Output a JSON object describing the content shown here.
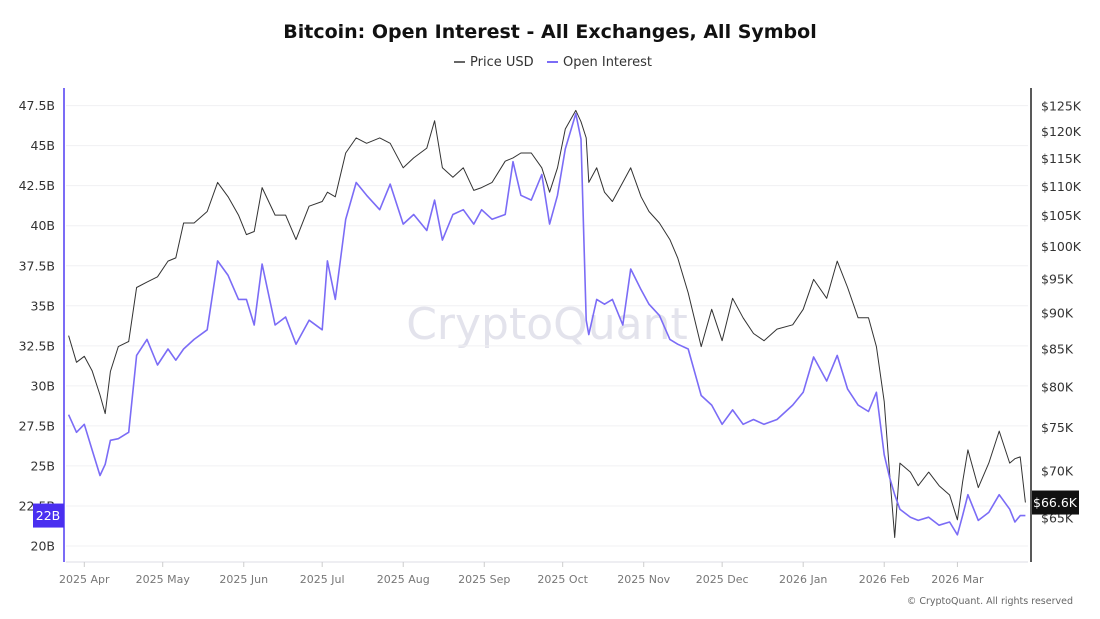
{
  "chart_data": {
    "type": "line",
    "title": "Bitcoin: Open Interest - All Exchanges, All Symbol",
    "legend": {
      "placement": "top-center",
      "entries": [
        "Price USD",
        "Open Interest"
      ]
    },
    "watermark": "CryptoQuant",
    "footer": "© CryptoQuant. All rights reserved",
    "xlim": [
      "2025-03-25",
      "2026-03-28"
    ],
    "x_ticks": [
      {
        "date": "2025-04-01",
        "label": "2025 Apr"
      },
      {
        "date": "2025-05-01",
        "label": "2025 May"
      },
      {
        "date": "2025-06-01",
        "label": "2025 Jun"
      },
      {
        "date": "2025-07-01",
        "label": "2025 Jul"
      },
      {
        "date": "2025-08-01",
        "label": "2025 Aug"
      },
      {
        "date": "2025-09-01",
        "label": "2025 Sep"
      },
      {
        "date": "2025-10-01",
        "label": "2025 Oct"
      },
      {
        "date": "2025-11-01",
        "label": "2025 Nov"
      },
      {
        "date": "2025-12-01",
        "label": "2025 Dec"
      },
      {
        "date": "2026-01-01",
        "label": "2026 Jan"
      },
      {
        "date": "2026-02-01",
        "label": "2026 Feb"
      },
      {
        "date": "2026-03-01",
        "label": "2026 Mar"
      }
    ],
    "y_left": {
      "scale": "linear",
      "ylim": [
        19.0,
        48.6
      ],
      "ticks": [
        {
          "v": 20,
          "label": "20B"
        },
        {
          "v": 22.5,
          "label": "22.5B"
        },
        {
          "v": 25,
          "label": "25B"
        },
        {
          "v": 27.5,
          "label": "27.5B"
        },
        {
          "v": 30,
          "label": "30B"
        },
        {
          "v": 32.5,
          "label": "32.5B"
        },
        {
          "v": 35,
          "label": "35B"
        },
        {
          "v": 37.5,
          "label": "37.5B"
        },
        {
          "v": 40,
          "label": "40B"
        },
        {
          "v": 42.5,
          "label": "42.5B"
        },
        {
          "v": 45,
          "label": "45B"
        },
        {
          "v": 47.5,
          "label": "47.5B"
        }
      ],
      "current": {
        "v": 21.9,
        "label": "22B"
      }
    },
    "y_right": {
      "scale": "log",
      "ylim": [
        60.6,
        128.6
      ],
      "unit": "K USD",
      "ticks": [
        {
          "v": 65,
          "label": "$65K"
        },
        {
          "v": 70,
          "label": "$70K"
        },
        {
          "v": 75,
          "label": "$75K"
        },
        {
          "v": 80,
          "label": "$80K"
        },
        {
          "v": 85,
          "label": "$85K"
        },
        {
          "v": 90,
          "label": "$90K"
        },
        {
          "v": 95,
          "label": "$95K"
        },
        {
          "v": 100,
          "label": "$100K"
        },
        {
          "v": 105,
          "label": "$105K"
        },
        {
          "v": 110,
          "label": "$110K"
        },
        {
          "v": 115,
          "label": "$115K"
        },
        {
          "v": 120,
          "label": "$120K"
        },
        {
          "v": 125,
          "label": "$125K"
        }
      ],
      "current": {
        "v": 66.6,
        "label": "$66.6K"
      }
    },
    "grid": true,
    "series": [
      {
        "name": "Price USD",
        "axis": "right",
        "color": "#333333",
        "points": [
          [
            "2025-03-26",
            86.8
          ],
          [
            "2025-03-29",
            83.2
          ],
          [
            "2025-04-01",
            84.0
          ],
          [
            "2025-04-04",
            82.1
          ],
          [
            "2025-04-07",
            79.0
          ],
          [
            "2025-04-09",
            76.7
          ],
          [
            "2025-04-11",
            82.0
          ],
          [
            "2025-04-14",
            85.3
          ],
          [
            "2025-04-18",
            86.0
          ],
          [
            "2025-04-21",
            93.7
          ],
          [
            "2025-04-25",
            94.5
          ],
          [
            "2025-04-29",
            95.3
          ],
          [
            "2025-05-03",
            97.7
          ],
          [
            "2025-05-06",
            98.2
          ],
          [
            "2025-05-09",
            103.8
          ],
          [
            "2025-05-13",
            103.8
          ],
          [
            "2025-05-18",
            105.7
          ],
          [
            "2025-05-22",
            110.7
          ],
          [
            "2025-05-26",
            108.2
          ],
          [
            "2025-05-30",
            105.1
          ],
          [
            "2025-06-02",
            101.9
          ],
          [
            "2025-06-05",
            102.4
          ],
          [
            "2025-06-08",
            109.8
          ],
          [
            "2025-06-13",
            105.1
          ],
          [
            "2025-06-17",
            105.1
          ],
          [
            "2025-06-21",
            101.1
          ],
          [
            "2025-06-26",
            106.6
          ],
          [
            "2025-07-01",
            107.4
          ],
          [
            "2025-07-03",
            109.0
          ],
          [
            "2025-07-06",
            108.2
          ],
          [
            "2025-07-10",
            116.0
          ],
          [
            "2025-07-14",
            118.8
          ],
          [
            "2025-07-18",
            117.8
          ],
          [
            "2025-07-23",
            118.8
          ],
          [
            "2025-07-27",
            117.8
          ],
          [
            "2025-08-01",
            113.3
          ],
          [
            "2025-08-05",
            115.1
          ],
          [
            "2025-08-10",
            116.9
          ],
          [
            "2025-08-13",
            122.1
          ],
          [
            "2025-08-16",
            113.3
          ],
          [
            "2025-08-20",
            111.6
          ],
          [
            "2025-08-24",
            113.3
          ],
          [
            "2025-08-28",
            109.3
          ],
          [
            "2025-08-31",
            109.8
          ],
          [
            "2025-09-04",
            110.7
          ],
          [
            "2025-09-09",
            114.5
          ],
          [
            "2025-09-12",
            115.1
          ],
          [
            "2025-09-15",
            116.0
          ],
          [
            "2025-09-19",
            116.0
          ],
          [
            "2025-09-23",
            113.3
          ],
          [
            "2025-09-26",
            109.0
          ],
          [
            "2025-09-29",
            113.3
          ],
          [
            "2025-10-02",
            120.5
          ],
          [
            "2025-10-06",
            124.1
          ],
          [
            "2025-10-08",
            121.9
          ],
          [
            "2025-10-10",
            118.8
          ],
          [
            "2025-10-11",
            110.7
          ],
          [
            "2025-10-14",
            113.3
          ],
          [
            "2025-10-17",
            109.0
          ],
          [
            "2025-10-20",
            107.4
          ],
          [
            "2025-10-24",
            110.7
          ],
          [
            "2025-10-27",
            113.3
          ],
          [
            "2025-10-31",
            108.2
          ],
          [
            "2025-11-03",
            105.7
          ],
          [
            "2025-11-07",
            103.8
          ],
          [
            "2025-11-11",
            101.1
          ],
          [
            "2025-11-14",
            98.2
          ],
          [
            "2025-11-18",
            92.9
          ],
          [
            "2025-11-23",
            85.3
          ],
          [
            "2025-11-27",
            90.5
          ],
          [
            "2025-12-01",
            86.1
          ],
          [
            "2025-12-05",
            92.1
          ],
          [
            "2025-12-09",
            89.3
          ],
          [
            "2025-12-13",
            87.1
          ],
          [
            "2025-12-17",
            86.1
          ],
          [
            "2025-12-22",
            87.7
          ],
          [
            "2025-12-28",
            88.3
          ],
          [
            "2026-01-01",
            90.5
          ],
          [
            "2026-01-05",
            94.9
          ],
          [
            "2026-01-10",
            92.1
          ],
          [
            "2026-01-14",
            97.7
          ],
          [
            "2026-01-18",
            93.7
          ],
          [
            "2026-01-22",
            89.3
          ],
          [
            "2026-01-26",
            89.3
          ],
          [
            "2026-01-29",
            85.3
          ],
          [
            "2026-02-01",
            78.2
          ],
          [
            "2026-02-03",
            69.9
          ],
          [
            "2026-02-05",
            63.0
          ],
          [
            "2026-02-07",
            70.9
          ],
          [
            "2026-02-11",
            69.9
          ],
          [
            "2026-02-14",
            68.4
          ],
          [
            "2026-02-18",
            69.9
          ],
          [
            "2026-02-22",
            68.4
          ],
          [
            "2026-02-26",
            67.4
          ],
          [
            "2026-03-01",
            64.8
          ],
          [
            "2026-03-03",
            68.8
          ],
          [
            "2026-03-05",
            72.4
          ],
          [
            "2026-03-09",
            68.2
          ],
          [
            "2026-03-13",
            70.9
          ],
          [
            "2026-03-17",
            74.6
          ],
          [
            "2026-03-21",
            70.9
          ],
          [
            "2026-03-23",
            71.4
          ],
          [
            "2026-03-25",
            71.6
          ],
          [
            "2026-03-27",
            66.6
          ]
        ]
      },
      {
        "name": "Open Interest",
        "axis": "left",
        "color": "#7b6cf6",
        "points": [
          [
            "2025-03-26",
            28.2
          ],
          [
            "2025-03-29",
            27.1
          ],
          [
            "2025-04-01",
            27.6
          ],
          [
            "2025-04-04",
            26.0
          ],
          [
            "2025-04-07",
            24.4
          ],
          [
            "2025-04-09",
            25.1
          ],
          [
            "2025-04-11",
            26.6
          ],
          [
            "2025-04-14",
            26.7
          ],
          [
            "2025-04-18",
            27.1
          ],
          [
            "2025-04-21",
            31.9
          ],
          [
            "2025-04-25",
            32.9
          ],
          [
            "2025-04-29",
            31.3
          ],
          [
            "2025-05-03",
            32.3
          ],
          [
            "2025-05-06",
            31.6
          ],
          [
            "2025-05-09",
            32.3
          ],
          [
            "2025-05-13",
            32.9
          ],
          [
            "2025-05-18",
            33.5
          ],
          [
            "2025-05-22",
            37.8
          ],
          [
            "2025-05-26",
            36.9
          ],
          [
            "2025-05-30",
            35.4
          ],
          [
            "2025-06-02",
            35.4
          ],
          [
            "2025-06-05",
            33.8
          ],
          [
            "2025-06-08",
            37.6
          ],
          [
            "2025-06-13",
            33.8
          ],
          [
            "2025-06-17",
            34.3
          ],
          [
            "2025-06-21",
            32.6
          ],
          [
            "2025-06-26",
            34.1
          ],
          [
            "2025-07-01",
            33.5
          ],
          [
            "2025-07-03",
            37.8
          ],
          [
            "2025-07-06",
            35.4
          ],
          [
            "2025-07-10",
            40.4
          ],
          [
            "2025-07-14",
            42.7
          ],
          [
            "2025-07-18",
            41.9
          ],
          [
            "2025-07-23",
            41.0
          ],
          [
            "2025-07-27",
            42.6
          ],
          [
            "2025-08-01",
            40.1
          ],
          [
            "2025-08-05",
            40.7
          ],
          [
            "2025-08-10",
            39.7
          ],
          [
            "2025-08-13",
            41.6
          ],
          [
            "2025-08-16",
            39.1
          ],
          [
            "2025-08-20",
            40.7
          ],
          [
            "2025-08-24",
            41.0
          ],
          [
            "2025-08-28",
            40.1
          ],
          [
            "2025-08-31",
            41.0
          ],
          [
            "2025-09-04",
            40.4
          ],
          [
            "2025-09-09",
            40.7
          ],
          [
            "2025-09-12",
            44.0
          ],
          [
            "2025-09-15",
            41.9
          ],
          [
            "2025-09-19",
            41.6
          ],
          [
            "2025-09-23",
            43.2
          ],
          [
            "2025-09-26",
            40.1
          ],
          [
            "2025-09-29",
            41.9
          ],
          [
            "2025-10-02",
            44.8
          ],
          [
            "2025-10-06",
            47.0
          ],
          [
            "2025-10-08",
            45.4
          ],
          [
            "2025-10-10",
            34.1
          ],
          [
            "2025-10-11",
            33.2
          ],
          [
            "2025-10-14",
            35.4
          ],
          [
            "2025-10-17",
            35.1
          ],
          [
            "2025-10-20",
            35.4
          ],
          [
            "2025-10-24",
            33.8
          ],
          [
            "2025-10-27",
            37.3
          ],
          [
            "2025-10-31",
            36.0
          ],
          [
            "2025-11-03",
            35.1
          ],
          [
            "2025-11-07",
            34.4
          ],
          [
            "2025-11-11",
            32.9
          ],
          [
            "2025-11-14",
            32.6
          ],
          [
            "2025-11-18",
            32.3
          ],
          [
            "2025-11-23",
            29.4
          ],
          [
            "2025-11-27",
            28.8
          ],
          [
            "2025-12-01",
            27.6
          ],
          [
            "2025-12-05",
            28.5
          ],
          [
            "2025-12-09",
            27.6
          ],
          [
            "2025-12-13",
            27.9
          ],
          [
            "2025-12-17",
            27.6
          ],
          [
            "2025-12-22",
            27.9
          ],
          [
            "2025-12-28",
            28.8
          ],
          [
            "2026-01-01",
            29.6
          ],
          [
            "2026-01-05",
            31.8
          ],
          [
            "2026-01-10",
            30.3
          ],
          [
            "2026-01-14",
            31.9
          ],
          [
            "2026-01-18",
            29.8
          ],
          [
            "2026-01-22",
            28.8
          ],
          [
            "2026-01-26",
            28.4
          ],
          [
            "2026-01-29",
            29.6
          ],
          [
            "2026-02-01",
            25.7
          ],
          [
            "2026-02-03",
            24.3
          ],
          [
            "2026-02-05",
            23.2
          ],
          [
            "2026-02-07",
            22.3
          ],
          [
            "2026-02-11",
            21.8
          ],
          [
            "2026-02-14",
            21.6
          ],
          [
            "2026-02-18",
            21.8
          ],
          [
            "2026-02-22",
            21.3
          ],
          [
            "2026-02-26",
            21.5
          ],
          [
            "2026-03-01",
            20.7
          ],
          [
            "2026-03-03",
            21.9
          ],
          [
            "2026-03-05",
            23.2
          ],
          [
            "2026-03-09",
            21.6
          ],
          [
            "2026-03-13",
            22.1
          ],
          [
            "2026-03-17",
            23.2
          ],
          [
            "2026-03-21",
            22.3
          ],
          [
            "2026-03-23",
            21.5
          ],
          [
            "2026-03-25",
            21.9
          ],
          [
            "2026-03-27",
            21.9
          ]
        ]
      }
    ]
  }
}
